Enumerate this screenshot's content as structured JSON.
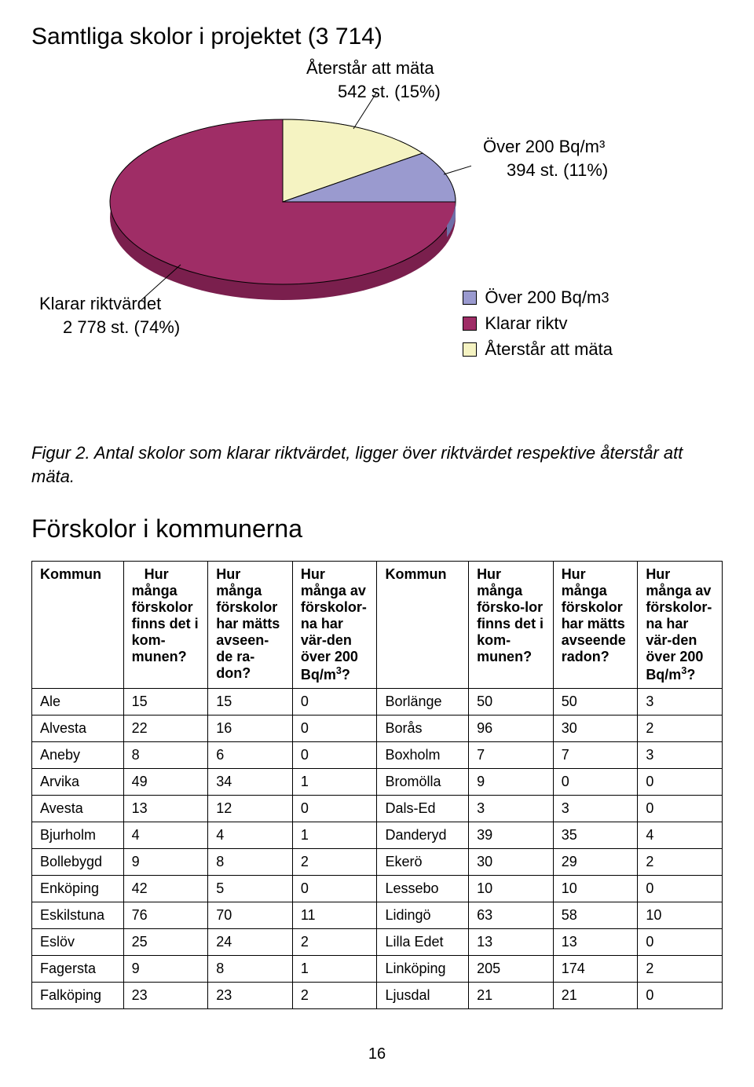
{
  "chart": {
    "type": "pie",
    "title": "Samtliga skolor i projektet (3 714)",
    "title_fontsize": 30,
    "background_color": "#ffffff",
    "slices": [
      {
        "label_line1": "Klarar riktvärdet",
        "label_line2": "2 778 st. (74%)",
        "value": 74,
        "color": "#9f2d66"
      },
      {
        "label_line1": "Återstår att mäta",
        "label_line2": "542 st. (15%)",
        "value": 15,
        "color": "#f5f3c2"
      },
      {
        "label_line1": "Över 200 Bq/m³",
        "label_line2": "394 st. (11%)",
        "value": 11,
        "color": "#9a9acf"
      }
    ],
    "legend": [
      {
        "label": "Över 200 Bq/m",
        "sup": "3",
        "color": "#9a9acf"
      },
      {
        "label": "Klarar riktv",
        "sup": "",
        "color": "#9f2d66"
      },
      {
        "label": "Återstår att mäta",
        "sup": "",
        "color": "#f5f3c2"
      }
    ],
    "label_fontsize": 22,
    "border_color": "#000000",
    "depth_color_main": "#7a1f4d",
    "depth_color_blue": "#6f6fa8"
  },
  "caption": {
    "prefix": "Figur 2.",
    "text": " Antal skolor som klarar riktvärdet, ligger över riktvärdet respektive återstår att mäta."
  },
  "section_title": "Förskolor i kommunerna",
  "table": {
    "header": {
      "col1": "Kommun",
      "col2_a": "Hur många förskolor finns det i kom-",
      "col2_b": "munen?",
      "col3_a": "Hur många förskolor har mätts avseen-",
      "col3_b": "de ra-",
      "col3_c": "don?",
      "col4_a": "Hur många av förskolor-",
      "col4_b": "na har vär-",
      "col4_c": "den över 200 Bq/m",
      "col4_sup": "3",
      "col4_q": "?",
      "col5": "Kommun",
      "col6_a": "Hur många försko-",
      "col6_b": "lor finns det i kom-",
      "col6_c": "munen?",
      "col7_a": "Hur många förskolor har mätts avseende radon?",
      "col8_a": "Hur många av förskolor-",
      "col8_b": "na har vär-",
      "col8_c": "den över 200 Bq/m",
      "col8_sup": "3",
      "col8_q": "?"
    },
    "rows": [
      [
        "Ale",
        "15",
        "15",
        "0",
        "Borlänge",
        "50",
        "50",
        "3"
      ],
      [
        "Alvesta",
        "22",
        "16",
        "0",
        "Borås",
        "96",
        "30",
        "2"
      ],
      [
        "Aneby",
        "8",
        "6",
        "0",
        "Boxholm",
        "7",
        "7",
        "3"
      ],
      [
        "Arvika",
        "49",
        "34",
        "1",
        "Bromölla",
        "9",
        "0",
        "0"
      ],
      [
        "Avesta",
        "13",
        "12",
        "0",
        "Dals-Ed",
        "3",
        "3",
        "0"
      ],
      [
        "Bjurholm",
        "4",
        "4",
        "1",
        "Danderyd",
        "39",
        "35",
        "4"
      ],
      [
        "Bollebygd",
        "9",
        "8",
        "2",
        "Ekerö",
        "30",
        "29",
        "2"
      ],
      [
        "Enköping",
        "42",
        "5",
        "0",
        "Lessebo",
        "10",
        "10",
        "0"
      ],
      [
        "Eskilstuna",
        "76",
        "70",
        "11",
        "Lidingö",
        "63",
        "58",
        "10"
      ],
      [
        "Eslöv",
        "25",
        "24",
        "2",
        "Lilla Edet",
        "13",
        "13",
        "0"
      ],
      [
        "Fagersta",
        "9",
        "8",
        "1",
        "Linköping",
        "205",
        "174",
        "2"
      ],
      [
        "Falköping",
        "23",
        "23",
        "2",
        "Ljusdal",
        "21",
        "21",
        "0"
      ]
    ]
  },
  "page_number": "16"
}
